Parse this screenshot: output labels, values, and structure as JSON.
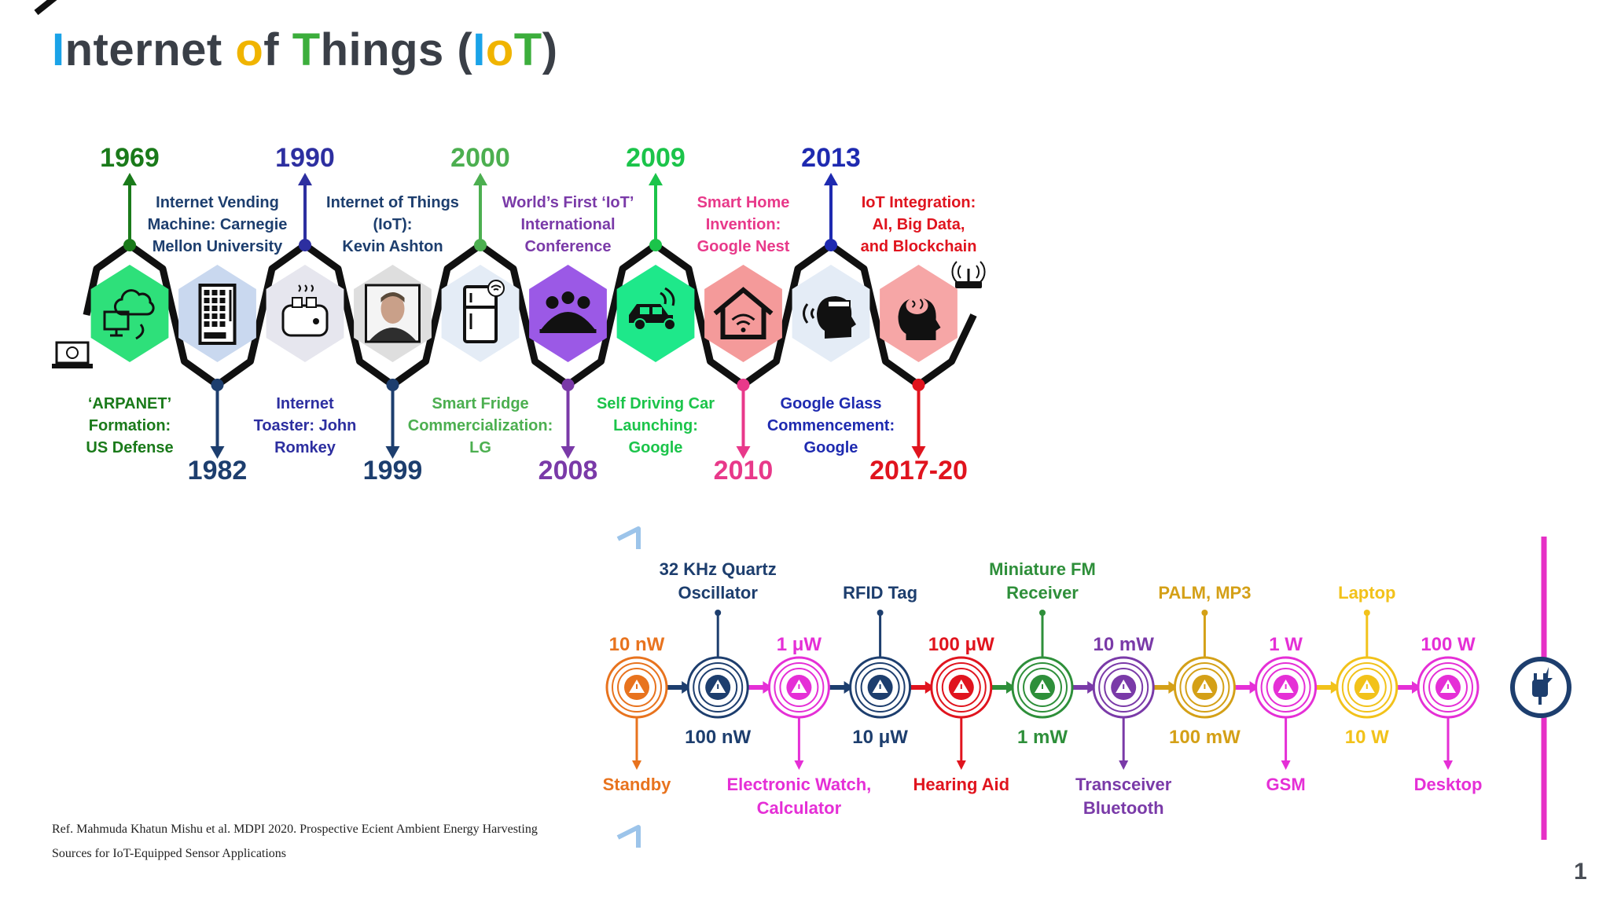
{
  "title": {
    "parts": [
      {
        "text": "I",
        "color": "#1aa3e8"
      },
      {
        "text": "nternet ",
        "color": "#3a3f47"
      },
      {
        "text": "o",
        "color": "#f0b400"
      },
      {
        "text": "f ",
        "color": "#3a3f47"
      },
      {
        "text": "T",
        "color": "#3cae3c"
      },
      {
        "text": "hings (",
        "color": "#3a3f47"
      },
      {
        "text": "I",
        "color": "#1aa3e8"
      },
      {
        "text": "o",
        "color": "#f0b400"
      },
      {
        "text": "T",
        "color": "#3cae3c"
      },
      {
        "text": ")",
        "color": "#3a3f47"
      }
    ]
  },
  "timeline": {
    "events": [
      {
        "year": "1969",
        "color": "#1a7a1a",
        "label": [
          "‘ARPANET’",
          "Formation:",
          "US Defense"
        ],
        "icon": "cloud-computer-icon",
        "hex": "#2ee07a"
      },
      {
        "year": "1982",
        "color": "#1d3e6e",
        "label": [
          "Internet Vending",
          "Machine: Carnegie",
          "Mellon University"
        ],
        "icon": "vending-machine-icon",
        "hex": "#c9d8ef"
      },
      {
        "year": "1990",
        "color": "#2d2fa0",
        "label": [
          "Internet",
          "Toaster: John",
          "Romkey"
        ],
        "icon": "toaster-icon",
        "hex": "#e6e6ee"
      },
      {
        "year": "1999",
        "color": "#1d3e6e",
        "label": [
          "Internet of Things",
          "(IoT):",
          "Kevin Ashton"
        ],
        "icon": "kevin-ashton-portrait",
        "hex": "#dedede"
      },
      {
        "year": "2000",
        "color": "#4caf50",
        "label": [
          "Smart Fridge",
          "Commercialization:",
          "LG"
        ],
        "icon": "fridge-icon",
        "hex": "#e4ecf6"
      },
      {
        "year": "2008",
        "color": "#7a3aa8",
        "label": [
          "World’s First ‘IoT’",
          "International",
          "Conference"
        ],
        "icon": "people-icon",
        "hex": "#9b59e6"
      },
      {
        "year": "2009",
        "color": "#1bc44a",
        "label": [
          "Self Driving Car",
          "Launching:",
          "Google"
        ],
        "icon": "car-icon",
        "hex": "#1ee88a"
      },
      {
        "year": "2010",
        "color": "#e8398a",
        "label": [
          "Smart Home",
          "Invention:",
          "Google Nest"
        ],
        "icon": "smart-home-icon",
        "hex": "#f49a9a"
      },
      {
        "year": "2013",
        "color": "#1e2ab0",
        "label": [
          "Google Glass",
          "Commencement:",
          "Google"
        ],
        "icon": "google-glass-icon",
        "hex": "#e4ecf6"
      },
      {
        "year": "2017-20",
        "color": "#e0141e",
        "label": [
          "IoT Integration:",
          "AI, Big Data,",
          "and Blockchain"
        ],
        "icon": "brain-icon",
        "hex": "#f6a6a6"
      }
    ]
  },
  "power_scale": {
    "nodes": [
      {
        "value": "10 nW",
        "device": [
          "Standby"
        ],
        "color": "#e8731e"
      },
      {
        "value": "100 nW",
        "device": [
          "32 KHz Quartz",
          "Oscillator"
        ],
        "color": "#1d3e6e"
      },
      {
        "value": "1 μW",
        "device": [
          "Electronic Watch,",
          "Calculator"
        ],
        "color": "#e52fd6"
      },
      {
        "value": "10 μW",
        "device": [
          "RFID Tag"
        ],
        "color": "#1d3e6e"
      },
      {
        "value": "100 μW",
        "device": [
          "Hearing Aid"
        ],
        "color": "#e0141e"
      },
      {
        "value": "1 mW",
        "device": [
          "Miniature FM",
          "Receiver"
        ],
        "color": "#2e8f3a"
      },
      {
        "value": "10 mW",
        "device": [
          "Transceiver",
          "Bluetooth"
        ],
        "color": "#7a3aa8"
      },
      {
        "value": "100 mW",
        "device": [
          "PALM, MP3"
        ],
        "color": "#d4a017"
      },
      {
        "value": "1 W",
        "device": [
          "GSM"
        ],
        "color": "#e52fd6"
      },
      {
        "value": "10 W",
        "device": [
          "Laptop"
        ],
        "color": "#f2c21a"
      },
      {
        "value": "100 W",
        "device": [
          "Desktop"
        ],
        "color": "#e52fd6"
      }
    ],
    "source_icon": "power-plug-icon"
  },
  "reference": {
    "lines": [
      "Ref. Mahmuda Khatun Mishu et al. MDPI 2020. Prospective Ecient Ambient Energy Harvesting",
      "Sources for IoT-Equipped Sensor Applications"
    ]
  },
  "page_number": "1"
}
